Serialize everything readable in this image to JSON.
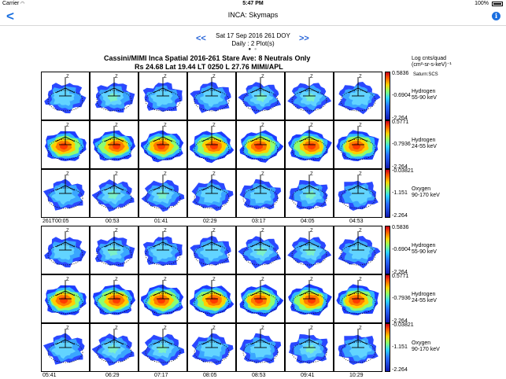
{
  "status_bar": {
    "carrier": "Carrier",
    "time": "5:47 PM",
    "battery": "100%"
  },
  "nav": {
    "title": "INCA: Skymaps",
    "back_glyph": "<",
    "info_glyph": "i"
  },
  "date": {
    "prev": "<<",
    "next": ">>",
    "line": "Sat 17 Sep 2016 261 DOY",
    "sub": "Daily : 2 Plot(s)"
  },
  "plot": {
    "title1": "Cassini/MIMI Inca Spatial  2016-261   Stare Ave: 8 Neutrals Only",
    "title2": "Rs 24.68 Lat 19.44 LT 0250 L 27.76  MIMI/APL",
    "unit_line1": "Log cnts/quad",
    "unit_line2": "(cm²-sr-s-keV)⁻¹",
    "unit_line3": "Saturn:SCS",
    "panel_marker": "Z",
    "colorbars": [
      {
        "max": "0.5836",
        "mid": "-0.6904",
        "min": "-2.264"
      },
      {
        "max": "0.5771",
        "mid": "-0.7936",
        "min": "-2.264"
      },
      {
        "max": "-0.03821",
        "mid": "-1.151",
        "min": "-2.264"
      }
    ],
    "species": [
      {
        "name": "Hydrogen",
        "energy": "55-90 keV"
      },
      {
        "name": "Hydrogen",
        "energy": "24-55 keV"
      },
      {
        "name": "Oxygen",
        "energy": "90-170 keV"
      }
    ],
    "times_a": [
      "261T00:05",
      "00:53",
      "01:41",
      "02:29",
      "03:17",
      "04:05",
      "04:53"
    ],
    "times_b": [
      "05:41",
      "06:29",
      "07:17",
      "08:05",
      "08:53",
      "09:41",
      "10:29"
    ]
  },
  "colors": {
    "accent": "#1a6fe0"
  }
}
